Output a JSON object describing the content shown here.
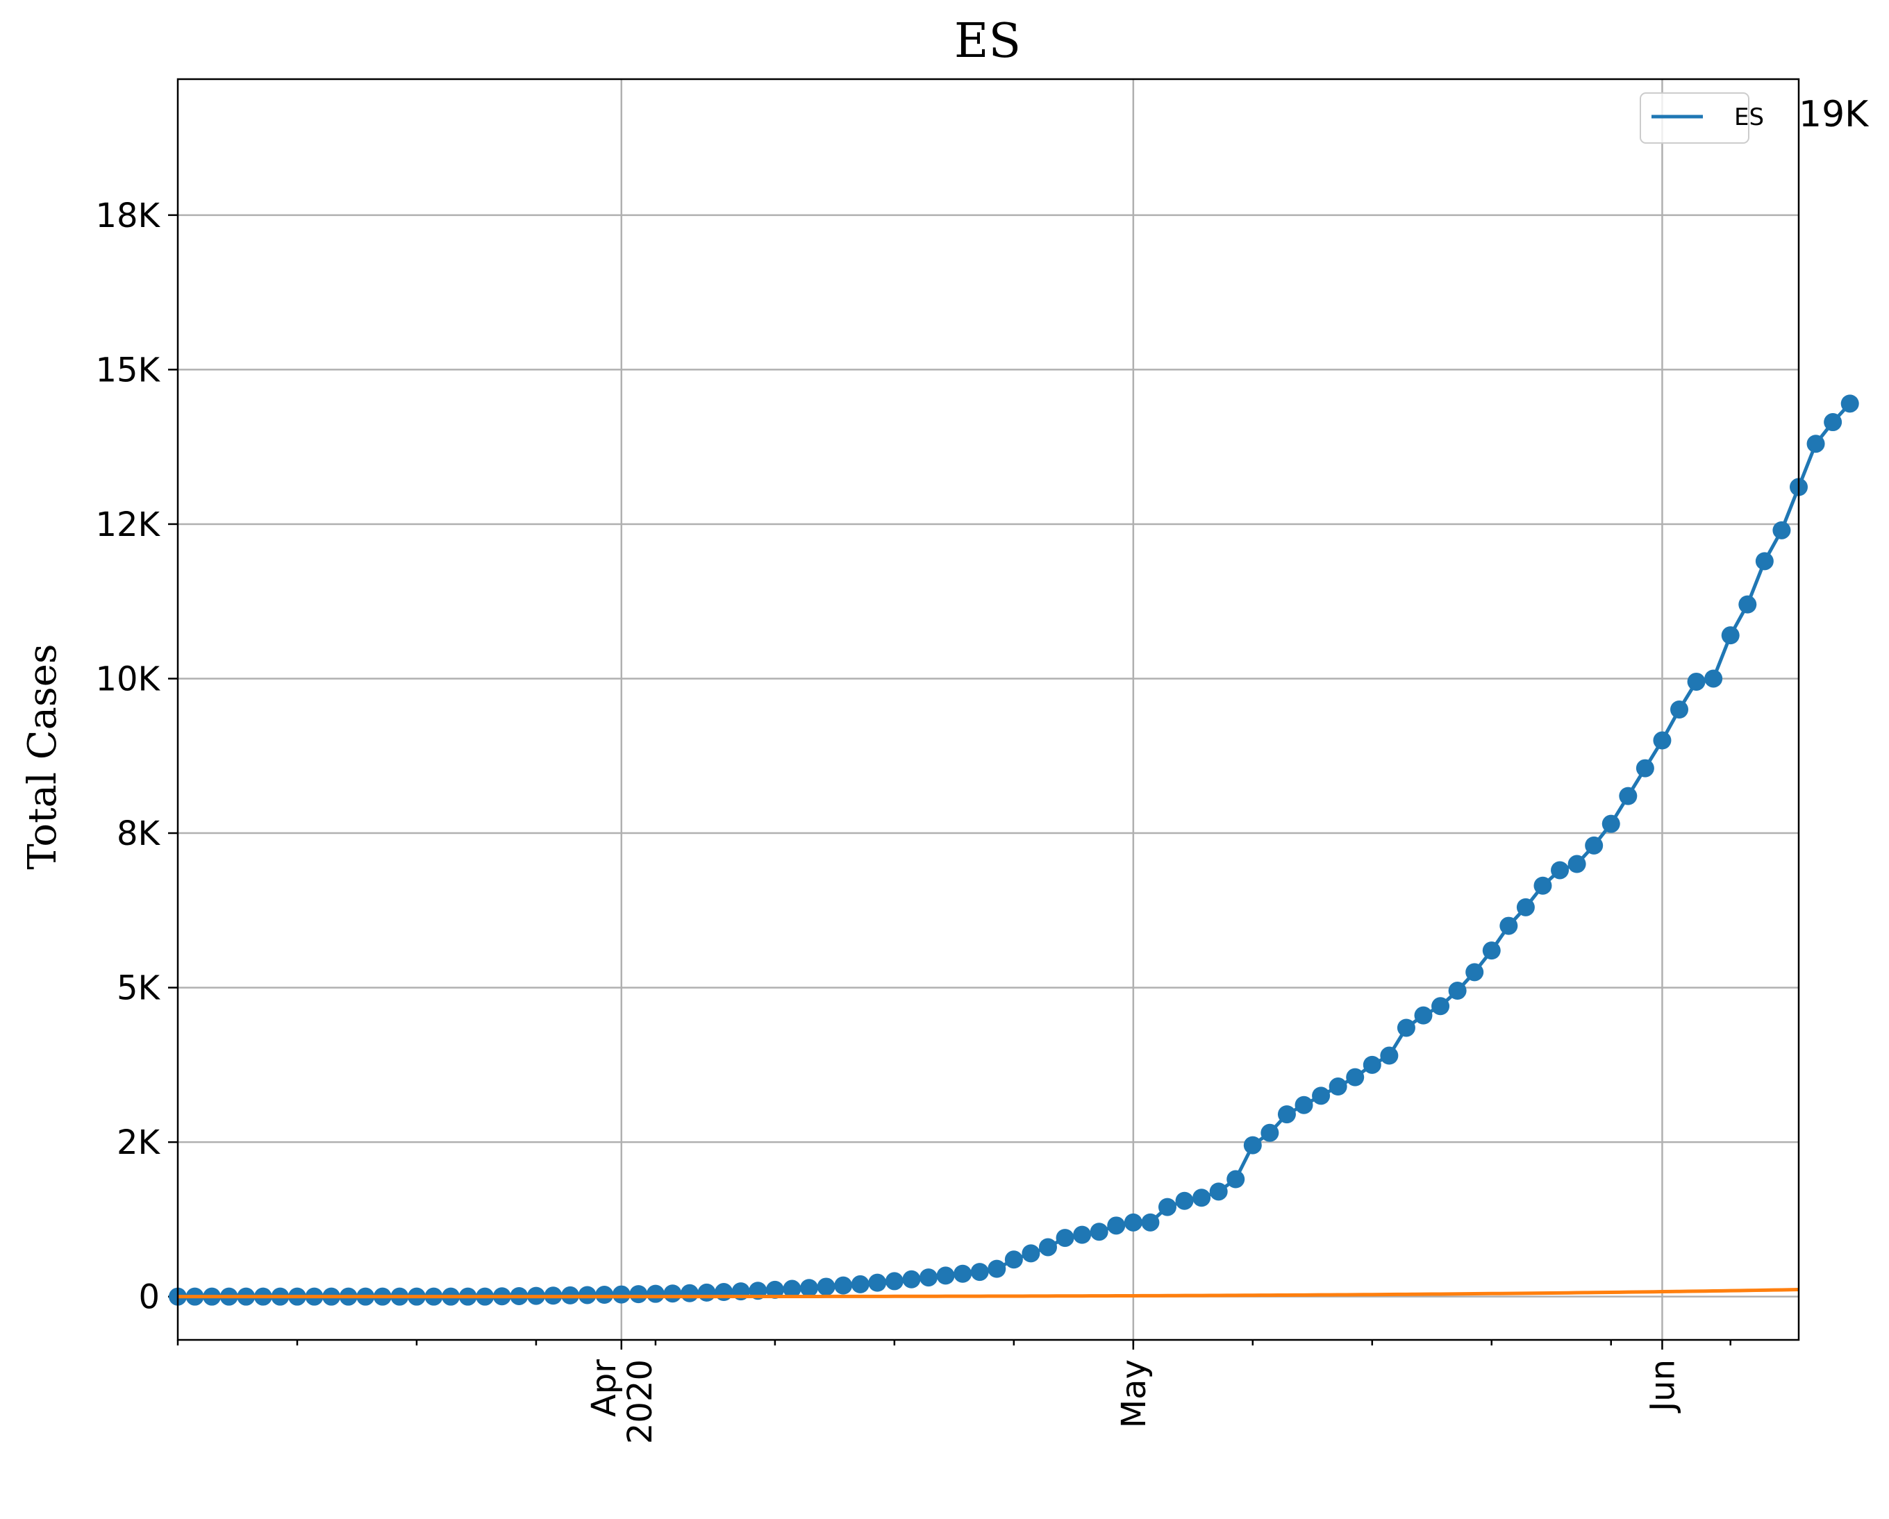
{
  "chart_data": {
    "type": "line",
    "title": "ES",
    "ylabel": "Total Cases",
    "xlabel": "",
    "xlim": [
      "2020-03-06",
      "2020-06-09"
    ],
    "ylim": [
      -700,
      19700
    ],
    "y_ticks": [
      0,
      2500,
      5000,
      7500,
      10000,
      12500,
      15000,
      17500
    ],
    "y_tick_labels": [
      "0",
      "2K",
      "5K",
      "8K",
      "10K",
      "12K",
      "15K",
      "18K"
    ],
    "x_ticks": [
      {
        "date": "2020-04-01",
        "label": [
          "Apr",
          "2020"
        ]
      },
      {
        "date": "2020-05-01",
        "label": [
          "May"
        ]
      },
      {
        "date": "2020-06-01",
        "label": [
          "Jun"
        ]
      }
    ],
    "grid": true,
    "legend": {
      "placement": "top-right",
      "entries": [
        "ES"
      ]
    },
    "annotation": "19K",
    "series": [
      {
        "name": "ES",
        "color": "#1f77b4",
        "marker": "circle",
        "x_start": "2020-03-06",
        "values": [
          0,
          0,
          0,
          0,
          0,
          0,
          0,
          0,
          0,
          0,
          0,
          0,
          0,
          0,
          0,
          0,
          0,
          0,
          0,
          5,
          8,
          12,
          16,
          20,
          25,
          30,
          35,
          40,
          45,
          50,
          55,
          65,
          75,
          85,
          95,
          110,
          125,
          140,
          160,
          180,
          200,
          225,
          250,
          280,
          310,
          340,
          370,
          400,
          450,
          600,
          700,
          800,
          950,
          1000,
          1050,
          1150,
          1200,
          1200,
          1450,
          1550,
          1600,
          1700,
          1900,
          2450,
          2650,
          2950,
          3100,
          3250,
          3400,
          3550,
          3750,
          3900,
          4350,
          4550,
          4700,
          4950,
          5250,
          5600,
          6000,
          6300,
          6650,
          6900,
          7000,
          7300,
          7650,
          8100,
          8550,
          9000,
          9500,
          9950,
          10000,
          10700,
          11200,
          11900,
          12400,
          13100,
          13800,
          14150,
          14450
        ]
      },
      {
        "color": "#ff7f0e",
        "marker": "none",
        "fit": {
          "form": "power",
          "x_start": "2020-03-06",
          "start": 0,
          "scale": 1.4e-06,
          "exponent": 4.0,
          "x_end": "2020-06-09"
        }
      }
    ]
  }
}
